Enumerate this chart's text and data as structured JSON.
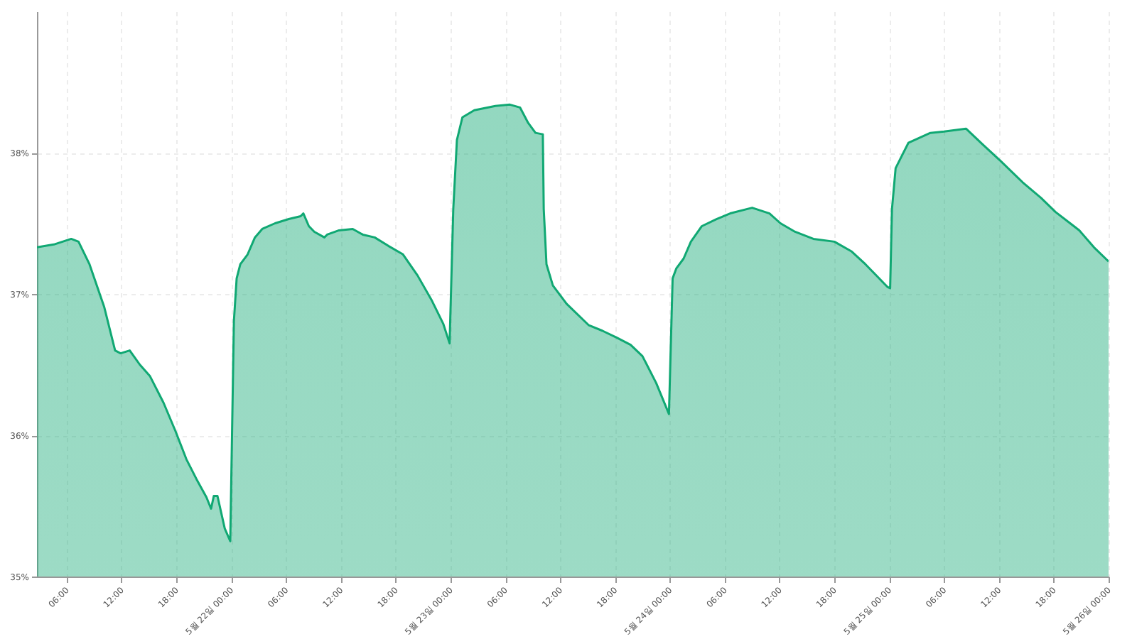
{
  "chart_data": {
    "type": "area",
    "x": [
      "--05-21T02:45",
      "--05-21T04:36",
      "--05-21T06:30",
      "--05-21T07:18",
      "--05-21T08:30",
      "--05-21T10:06",
      "--05-21T11:18",
      "--05-21T11:54",
      "--05-21T12:54",
      "--05-21T14:00",
      "--05-21T15:06",
      "--05-21T16:36",
      "--05-21T17:54",
      "--05-21T19:06",
      "--05-21T20:12",
      "--05-21T21:18",
      "--05-21T21:48",
      "--05-21T22:06",
      "--05-21T22:30",
      "--05-21T23:18",
      "--05-21T23:54",
      "--05-22T00:18",
      "--05-22T00:36",
      "--05-22T01:00",
      "--05-22T01:48",
      "--05-22T02:36",
      "--05-22T03:24",
      "--05-22T04:48",
      "--05-22T06:18",
      "--05-22T07:36",
      "--05-22T07:54",
      "--05-22T08:30",
      "--05-22T09:06",
      "--05-22T10:12",
      "--05-22T10:30",
      "--05-22T11:48",
      "--05-22T13:18",
      "--05-22T14:24",
      "--05-22T15:42",
      "--05-22T17:12",
      "--05-22T18:48",
      "--05-22T20:24",
      "--05-22T21:54",
      "--05-22T23:12",
      "--05-22T23:54",
      "--05-23T00:18",
      "--05-23T00:42",
      "--05-23T01:18",
      "--05-23T02:36",
      "--05-23T04:54",
      "--05-23T06:30",
      "--05-23T07:36",
      "--05-23T08:30",
      "--05-23T09:18",
      "--05-23T10:06",
      "--05-23T10:12",
      "--05-23T10:30",
      "--05-23T11:12",
      "--05-23T12:42",
      "--05-23T15:06",
      "--05-23T16:36",
      "--05-23T18:12",
      "--05-23T19:42",
      "--05-23T21:00",
      "--05-23T22:30",
      "--05-23T23:54",
      "--05-24T00:18",
      "--05-24T00:42",
      "--05-24T01:30",
      "--05-24T02:18",
      "--05-24T03:30",
      "--05-24T05:06",
      "--05-24T06:36",
      "--05-24T09:00",
      "--05-24T10:54",
      "--05-24T12:06",
      "--05-24T13:42",
      "--05-24T15:42",
      "--05-24T18:00",
      "--05-24T19:54",
      "--05-24T21:24",
      "--05-24T23:48",
      "--05-25T00:06",
      "--05-25T00:18",
      "--05-25T00:42",
      "--05-25T02:06",
      "--05-25T04:30",
      "--05-25T06:00",
      "--05-25T08:24",
      "--05-25T10:12",
      "--05-25T12:12",
      "--05-25T14:36",
      "--05-25T16:36",
      "--05-25T18:12",
      "--05-25T20:00",
      "--05-25T20:48",
      "--05-25T22:24",
      "--05-26T00:00"
    ],
    "series": [
      {
        "color": "#10a873",
        "values": [
          37.33,
          37.35,
          37.39,
          37.37,
          37.21,
          36.91,
          36.6,
          36.58,
          36.6,
          36.5,
          36.42,
          36.23,
          36.03,
          35.83,
          35.69,
          35.56,
          35.48,
          35.57,
          35.57,
          35.34,
          35.25,
          36.81,
          37.11,
          37.21,
          37.28,
          37.4,
          37.46,
          37.5,
          37.53,
          37.55,
          37.57,
          37.48,
          37.44,
          37.4,
          37.42,
          37.45,
          37.46,
          37.42,
          37.4,
          37.34,
          37.28,
          37.13,
          36.96,
          36.79,
          36.65,
          37.6,
          38.09,
          38.25,
          38.3,
          38.33,
          38.34,
          38.32,
          38.21,
          38.14,
          38.13,
          37.6,
          37.21,
          37.06,
          36.93,
          36.78,
          36.74,
          36.69,
          36.64,
          36.56,
          36.37,
          36.15,
          37.11,
          37.18,
          37.25,
          37.37,
          37.48,
          37.53,
          37.57,
          37.61,
          37.57,
          37.5,
          37.44,
          37.39,
          37.37,
          37.3,
          37.21,
          37.05,
          37.04,
          37.6,
          37.89,
          38.07,
          38.14,
          38.15,
          38.17,
          38.06,
          37.94,
          37.79,
          37.68,
          37.58,
          37.49,
          37.45,
          37.33,
          37.23
        ]
      }
    ],
    "xlim": [
      "--05-21T02:45",
      "--05-26T00:00"
    ],
    "xticks": [
      {
        "value": "--05-21T06:00",
        "label": "06:00"
      },
      {
        "value": "--05-21T12:00",
        "label": "12:00"
      },
      {
        "value": "--05-21T18:00",
        "label": "18:00"
      },
      {
        "value": "--05-22T00:00",
        "label": "5월 22일 00:00"
      },
      {
        "value": "--05-22T06:00",
        "label": "06:00"
      },
      {
        "value": "--05-22T12:00",
        "label": "12:00"
      },
      {
        "value": "--05-22T18:00",
        "label": "18:00"
      },
      {
        "value": "--05-23T00:00",
        "label": "5월 23일 00:00"
      },
      {
        "value": "--05-23T06:00",
        "label": "06:00"
      },
      {
        "value": "--05-23T12:00",
        "label": "12:00"
      },
      {
        "value": "--05-23T18:00",
        "label": "18:00"
      },
      {
        "value": "--05-24T00:00",
        "label": "5월 24일 00:00"
      },
      {
        "value": "--05-24T06:00",
        "label": "06:00"
      },
      {
        "value": "--05-24T12:00",
        "label": "12:00"
      },
      {
        "value": "--05-24T18:00",
        "label": "18:00"
      },
      {
        "value": "--05-25T00:00",
        "label": "5월 25일 00:00"
      },
      {
        "value": "--05-25T06:00",
        "label": "06:00"
      },
      {
        "value": "--05-25T12:00",
        "label": "12:00"
      },
      {
        "value": "--05-25T18:00",
        "label": "18:00"
      },
      {
        "value": "--05-26T00:00",
        "label": "5월 26일 00:00"
      }
    ],
    "ylim": [
      35,
      39
    ],
    "yticks": [
      {
        "value": 35,
        "label": "35%"
      },
      {
        "value": 36,
        "label": "36%"
      },
      {
        "value": 37,
        "label": "37%"
      },
      {
        "value": 38,
        "label": "38%"
      }
    ],
    "grid": true
  }
}
